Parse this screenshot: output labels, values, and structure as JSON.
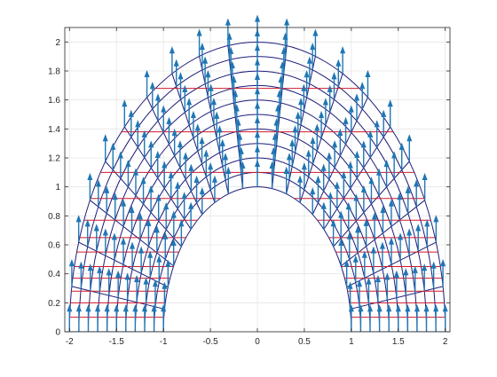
{
  "chart_data": {
    "type": "quiver",
    "title": "",
    "xlabel": "",
    "ylabel": "",
    "xlim": [
      -2.05,
      2.05
    ],
    "ylim": [
      0,
      2.1
    ],
    "grid": true,
    "x_ticks": [
      -2,
      -1.5,
      -1,
      -0.5,
      0,
      0.5,
      1,
      1.5,
      2
    ],
    "x_tick_labels": [
      "-2",
      "-1.5",
      "-1",
      "-0.5",
      "0",
      "0.5",
      "1",
      "1.5",
      "2"
    ],
    "y_ticks": [
      0,
      0.2,
      0.4,
      0.6,
      0.8,
      1,
      1.2,
      1.4,
      1.6,
      1.8,
      2
    ],
    "y_tick_labels": [
      "0",
      "0.2",
      "0.4",
      "0.6",
      "0.8",
      "1",
      "1.2",
      "1.4",
      "1.6",
      "1.8",
      "2"
    ],
    "mesh": {
      "shape": "half-annulus",
      "inner_radius": 1,
      "outer_radius": 2,
      "radial_levels": [
        1,
        1.1,
        1.2,
        1.3,
        1.4,
        1.5,
        1.6,
        1.7,
        1.8,
        1.9,
        2
      ],
      "angular_divisions": 20,
      "color": "#1c1c7a"
    },
    "horizontal_lines": {
      "y_values": [
        0.1,
        0.2,
        0.28,
        0.37,
        0.45,
        0.55,
        0.65,
        0.77,
        0.92,
        1.1,
        1.38,
        1.68
      ],
      "color": "#d0192b"
    },
    "vector_field": {
      "description": "uniform upward unit vectors at mesh nodes",
      "u": 0,
      "v": 1,
      "color": "#1f77b4"
    }
  }
}
